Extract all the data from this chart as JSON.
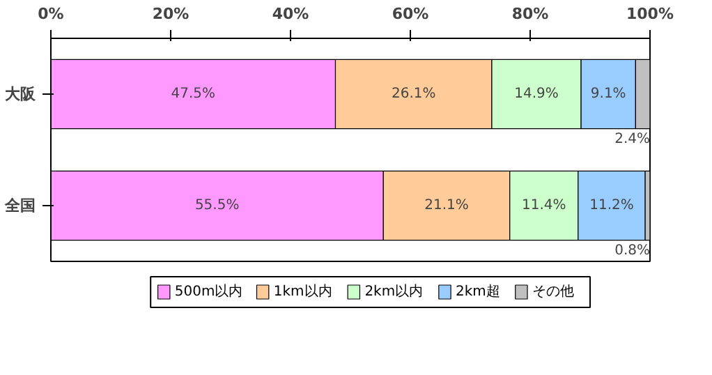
{
  "chart_data": {
    "type": "bar",
    "orientation": "horizontal",
    "stacked": true,
    "categories": [
      "大阪",
      "全国"
    ],
    "series": [
      {
        "name": "500m以内",
        "color": "#ff99ff",
        "values": [
          47.5,
          55.5
        ],
        "value_labels": [
          "47.5%",
          "55.5%"
        ]
      },
      {
        "name": "1km以内",
        "color": "#ffcc99",
        "values": [
          26.1,
          21.1
        ],
        "value_labels": [
          "26.1%",
          "21.1%"
        ]
      },
      {
        "name": "2km以内",
        "color": "#ccffcc",
        "values": [
          14.9,
          11.4
        ],
        "value_labels": [
          "14.9%",
          "11.4%"
        ]
      },
      {
        "name": "2km超",
        "color": "#99ccff",
        "values": [
          9.1,
          11.2
        ],
        "value_labels": [
          "9.1%",
          "11.2%"
        ]
      },
      {
        "name": "その他",
        "color": "#c0c0c0",
        "values": [
          2.4,
          0.8
        ],
        "value_labels": [
          "2.4%",
          "0.8%"
        ]
      }
    ],
    "xlim": [
      0,
      100
    ],
    "xticks": [
      {
        "value": 0,
        "label": "0%"
      },
      {
        "value": 20,
        "label": "20%"
      },
      {
        "value": 40,
        "label": "40%"
      },
      {
        "value": 60,
        "label": "60%"
      },
      {
        "value": 80,
        "label": "80%"
      },
      {
        "value": 100,
        "label": "100%"
      }
    ],
    "legend": "bottom"
  }
}
